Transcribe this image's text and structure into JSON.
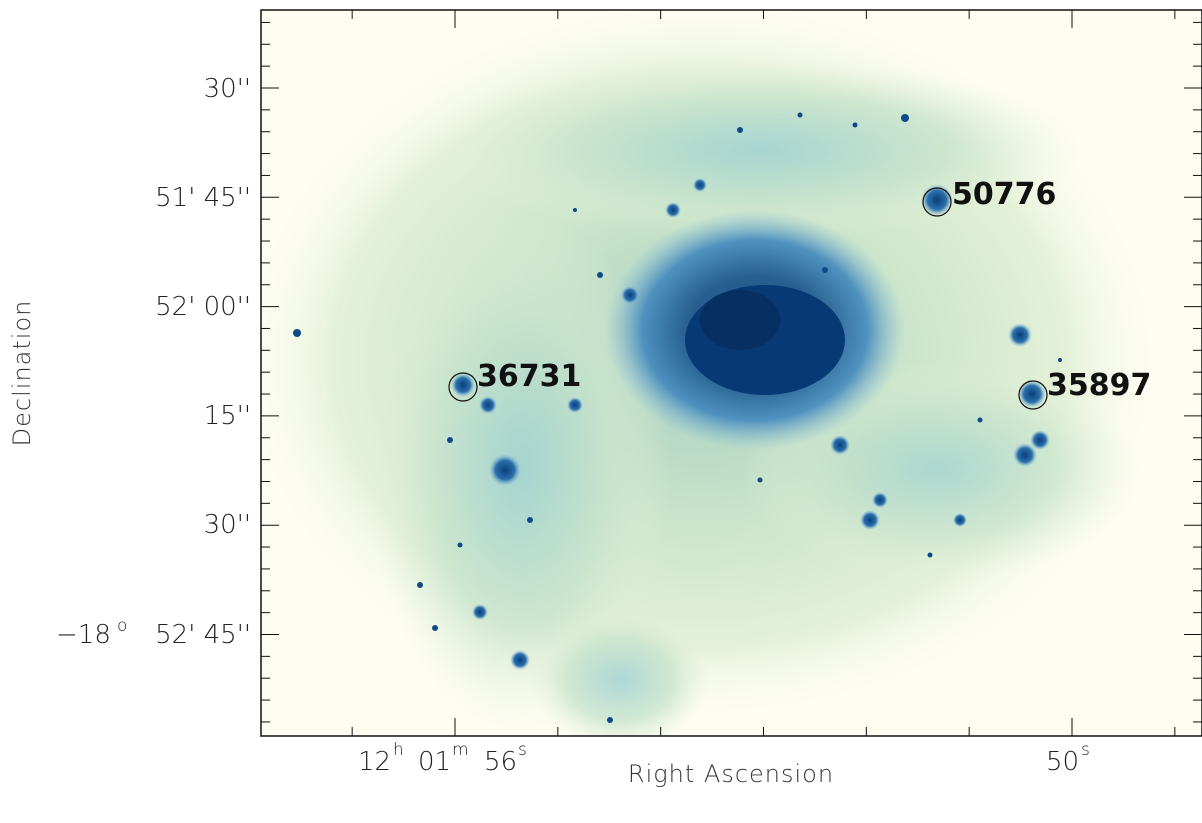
{
  "axes": {
    "xlabel": "Right Ascension",
    "ylabel": "Declination",
    "x_ticks": [
      {
        "h": "12",
        "hs": "h",
        "m": "01",
        "ms": "m",
        "s": "56",
        "ss": "s"
      },
      {
        "s": "50",
        "ss": "s"
      }
    ],
    "y_ticks": [
      {
        "text": "30''"
      },
      {
        "text": "51' 45''"
      },
      {
        "text": "52' 00''"
      },
      {
        "text": "15''"
      },
      {
        "text": "30''"
      },
      {
        "deg": "−18",
        "deg_sup": "o",
        "text": "52' 45''"
      }
    ]
  },
  "sources": [
    {
      "id": "50776"
    },
    {
      "id": "36731"
    },
    {
      "id": "35897"
    }
  ],
  "colors": {
    "background": "#fdfdf1",
    "faint": "#d6ecc9",
    "mid": "#5f9fcc",
    "dense": "#0f4a86",
    "core": "#073a74"
  }
}
